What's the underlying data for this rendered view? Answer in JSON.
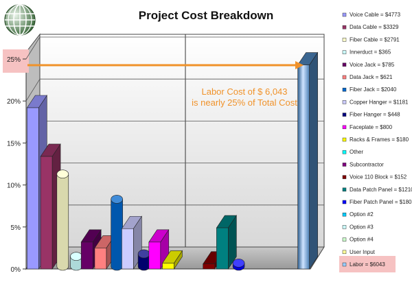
{
  "chart_data": {
    "type": "bar",
    "title": "Project Cost Breakdown",
    "ytick_labels": [
      "0%",
      "5%",
      "10%",
      "15%",
      "20%",
      "25%"
    ],
    "ylim": [
      0,
      25
    ],
    "highlight_tick": "25%",
    "annotation": {
      "line1": "Labor Cost of $ 6,043",
      "line2": "is nearly 25% of Total Cost"
    },
    "categories": [
      "Voice Cable = $4773",
      "Data Cable = $3329",
      "Fiber Cable = $2791",
      "Innerduct = $365",
      "Voice Jack = $785",
      "Data Jack = $621",
      "Fiber Jack = $2040",
      "Copper Hanger = $1181",
      "Fiber Hanger = $448",
      "Faceplate = $800",
      "Racks & Frames = $180",
      "Other",
      "Subcontractor",
      "Voice 110 Block = $152",
      "Data Patch Panel = $1210",
      "Fiber Patch Panel = $180",
      "Option #2",
      "Option #3",
      "Option #4",
      "User Input",
      "Labor = $6043"
    ],
    "values": [
      19.2,
      13.4,
      11.3,
      1.5,
      3.2,
      2.5,
      8.3,
      4.8,
      1.8,
      3.2,
      0.7,
      0,
      0,
      0.6,
      4.9,
      0.7,
      0,
      0,
      0,
      0,
      24.3
    ],
    "shapes": [
      "box",
      "box",
      "cylinder",
      "cylinder",
      "box",
      "box",
      "cylinder",
      "box",
      "cylinder",
      "box",
      "box",
      "box",
      "box",
      "box",
      "box",
      "cylinder",
      "box",
      "box",
      "box",
      "box",
      "box"
    ],
    "colors": [
      "#9999ff",
      "#993366",
      "#ffffcc",
      "#ccffff",
      "#660066",
      "#ff8080",
      "#0066cc",
      "#ccccff",
      "#000080",
      "#ff00ff",
      "#ffff00",
      "#00ffff",
      "#800080",
      "#800000",
      "#008080",
      "#0000ff",
      "#00ccff",
      "#ccffff",
      "#ccffcc",
      "#ffff99",
      "#99ccff"
    ],
    "highlight_category": "Labor = $6043",
    "grid": true,
    "legend_position": "right"
  }
}
